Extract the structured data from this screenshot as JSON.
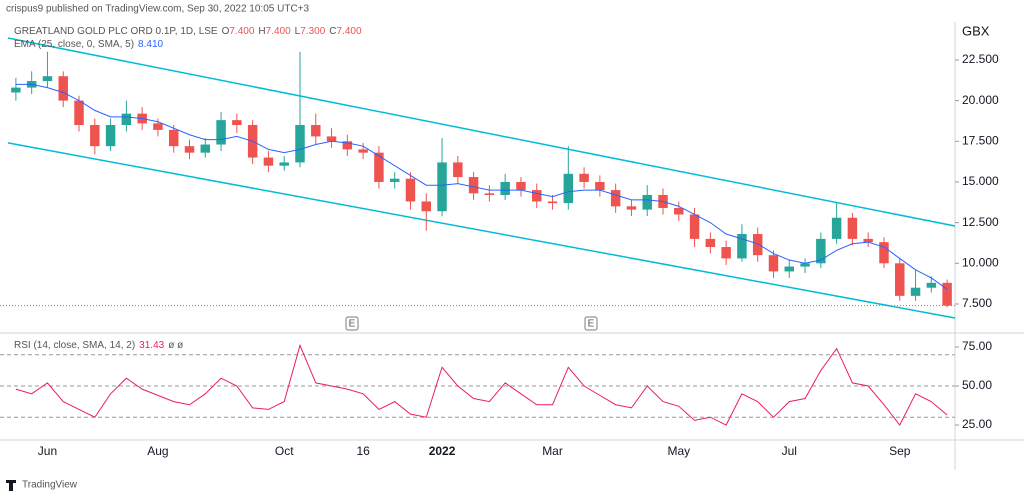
{
  "header": {
    "publisher": "crispus9 published on TradingView.com, Sep 30, 2022 10:05 UTC+3",
    "footer": "TradingView"
  },
  "chart_data": [
    {
      "type": "candlestick",
      "title": "GREATLAND GOLD PLC ORD 0.1P, 1D, LSE",
      "ohlc_legend": [
        {
          "key": "O",
          "value": 7.4,
          "label": "7.400"
        },
        {
          "key": "H",
          "value": 7.4,
          "label": "7.400"
        },
        {
          "key": "L",
          "value": 7.3,
          "label": "7.300"
        },
        {
          "key": "C",
          "value": 7.4,
          "label": "7.400"
        }
      ],
      "y_axis_label": "GBX",
      "up_color": "#26a69a",
      "down_color": "#ef5350",
      "categories": [
        null,
        null,
        "Jun",
        null,
        null,
        null,
        null,
        null,
        null,
        "Aug",
        null,
        null,
        null,
        null,
        null,
        null,
        null,
        "Oct",
        null,
        null,
        null,
        null,
        "16",
        null,
        null,
        null,
        null,
        "2022",
        null,
        null,
        null,
        null,
        null,
        null,
        "Mar",
        null,
        null,
        null,
        null,
        null,
        null,
        null,
        "May",
        null,
        null,
        null,
        null,
        null,
        null,
        "Jul",
        null,
        null,
        null,
        null,
        null,
        null,
        "Sep",
        null,
        null,
        null
      ],
      "open": [
        20.5,
        20.8,
        21.2,
        21.5,
        20,
        18.5,
        17.2,
        18.5,
        19.2,
        18.6,
        18.2,
        17.2,
        16.8,
        17.3,
        18.8,
        18.5,
        16.5,
        16,
        16.2,
        18.5,
        17.8,
        17.5,
        17,
        16.8,
        15,
        15.2,
        13.8,
        13.2,
        16.2,
        15.3,
        14.3,
        14.2,
        15,
        14.5,
        13.8,
        13.7,
        15.5,
        15,
        14.5,
        13.5,
        13.3,
        14.2,
        13.4,
        13,
        11.5,
        11,
        10.3,
        11.8,
        10.5,
        9.5,
        9.8,
        10,
        11.5,
        12.8,
        11.5,
        11.3,
        10,
        8,
        8.5,
        8.8
      ],
      "high": [
        21.4,
        21.8,
        23,
        21.8,
        20.3,
        18.9,
        18.9,
        20,
        19.6,
        18.9,
        18.5,
        17.6,
        17.7,
        19.3,
        19.2,
        18.8,
        16.9,
        16.6,
        23,
        19.2,
        18.3,
        17.9,
        17.4,
        17.2,
        15.6,
        15.6,
        14.3,
        17.7,
        16.6,
        15.6,
        14.8,
        15.5,
        15.3,
        14.9,
        14.2,
        17.2,
        15.9,
        15.4,
        14.9,
        13.9,
        14.8,
        14.6,
        13.8,
        13.4,
        11.9,
        11.4,
        12.4,
        12.2,
        10.8,
        10.2,
        10.3,
        11.9,
        13.7,
        13.1,
        11.9,
        11.6,
        10.3,
        9.6,
        9.2,
        9
      ],
      "low": [
        20,
        20.4,
        20.8,
        19.6,
        18.1,
        16.7,
        16.9,
        18.1,
        18.2,
        17.8,
        16.8,
        16.4,
        16.5,
        16.9,
        18,
        16.1,
        15.6,
        15.7,
        15.9,
        17.3,
        17.1,
        16.6,
        16.4,
        14.6,
        14.6,
        13.3,
        12,
        12.9,
        14.9,
        13.9,
        13.8,
        13.9,
        14.1,
        13.4,
        13.3,
        13.3,
        14.6,
        14.1,
        13.1,
        12.9,
        12.9,
        13,
        12.6,
        11,
        10.6,
        9.9,
        10.1,
        10.1,
        9.1,
        9.1,
        9.4,
        9.7,
        11.2,
        11.1,
        11,
        9.7,
        7.7,
        7.7,
        8.2,
        7.3
      ],
      "close": [
        20.8,
        21.2,
        21.5,
        20,
        18.5,
        17.2,
        18.5,
        19.2,
        18.6,
        18.2,
        17.2,
        16.8,
        17.3,
        18.8,
        18.5,
        16.5,
        16,
        16.2,
        18.5,
        17.8,
        17.5,
        17,
        16.8,
        15,
        15.2,
        13.8,
        13.2,
        16.2,
        15.3,
        14.3,
        14.2,
        15,
        14.5,
        13.8,
        13.7,
        15.5,
        15,
        14.5,
        13.5,
        13.3,
        14.2,
        13.4,
        13,
        11.5,
        11,
        10.3,
        11.8,
        10.5,
        9.5,
        9.8,
        10,
        11.5,
        12.8,
        11.5,
        11.3,
        10,
        8,
        8.5,
        8.8,
        7.4
      ],
      "series": [
        {
          "name": "EMA (25, close, 0, SMA, 5)",
          "color": "#2962ff",
          "value_label": "8.410",
          "values": [
            21,
            21,
            20.8,
            20.5,
            20,
            19.4,
            19,
            19,
            18.9,
            18.7,
            18.3,
            17.9,
            17.6,
            17.6,
            17.8,
            17.5,
            17,
            16.8,
            17,
            17.3,
            17.5,
            17.4,
            17.2,
            16.6,
            16,
            15.4,
            14.8,
            14.8,
            14.9,
            14.7,
            14.5,
            14.5,
            14.5,
            14.3,
            14.1,
            14.4,
            14.5,
            14.5,
            14.2,
            13.9,
            13.9,
            13.8,
            13.5,
            13,
            12.5,
            11.8,
            11.5,
            11.2,
            10.6,
            10.2,
            10,
            10.2,
            10.8,
            11.2,
            11.3,
            11,
            10.3,
            9.6,
            9.1,
            8.41
          ]
        }
      ],
      "channel": {
        "color": "#00bcd4",
        "upper": [
          23.85,
          12.29
        ],
        "lower": [
          17.4,
          6.64
        ]
      },
      "events": [
        "E",
        "E"
      ],
      "ylim": [
        5.9,
        24.34
      ],
      "yticks": [
        {
          "value": 7.5,
          "label": "7.500"
        },
        {
          "value": 10,
          "label": "10.000"
        },
        {
          "value": 12.5,
          "label": "12.500"
        },
        {
          "value": 15,
          "label": "15.000"
        },
        {
          "value": 17.5,
          "label": "17.500"
        },
        {
          "value": 20,
          "label": "20.000"
        },
        {
          "value": 22.5,
          "label": "22.500"
        }
      ]
    },
    {
      "type": "line",
      "series": [
        {
          "name": "RSI (14, close, SMA, 14, 2)",
          "color": "#e91e63",
          "value_label": "31.43",
          "extra": "ø ø",
          "values": [
            48,
            45,
            52,
            40,
            35,
            30,
            45,
            55,
            48,
            44,
            40,
            38,
            45,
            55,
            50,
            36,
            35,
            40,
            76,
            52,
            50,
            48,
            45,
            35,
            40,
            32,
            30,
            62,
            50,
            42,
            40,
            52,
            45,
            38,
            38,
            62,
            50,
            44,
            38,
            36,
            50,
            40,
            37,
            28,
            30,
            25,
            45,
            40,
            30,
            40,
            42,
            60,
            74,
            52,
            50,
            38,
            25,
            45,
            40,
            31.43
          ]
        }
      ],
      "levels": [
        70,
        50,
        30
      ],
      "ylim": [
        15.4,
        82.05
      ],
      "yticks": [
        {
          "value": 25,
          "label": "25.00"
        },
        {
          "value": 50,
          "label": "50.00"
        },
        {
          "value": 75,
          "label": "75.00"
        }
      ]
    }
  ]
}
